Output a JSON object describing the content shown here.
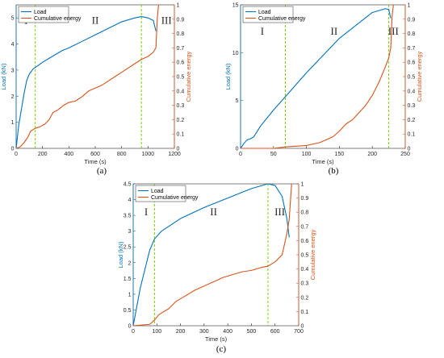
{
  "colors": {
    "load": "#0072BD",
    "energy": "#D95319",
    "divider": "#77D000",
    "axis": "#262626"
  },
  "chart_data": [
    {
      "type": "line",
      "panel_label": "(a)",
      "xlabel": "Time (s)",
      "ylabel_left": "Load (kN)",
      "ylabel_right": "Cumulative energy",
      "xlim": [
        0,
        1200
      ],
      "ylim_left": [
        0,
        5.5
      ],
      "ylim_right": [
        0,
        1
      ],
      "xticks": [
        "0",
        "200",
        "400",
        "600",
        "800",
        "1000",
        "1200"
      ],
      "yticks_left": [
        "0",
        "1",
        "2",
        "3",
        "4",
        "5"
      ],
      "yticks_right": [
        "0",
        "0.1",
        "0.2",
        "0.3",
        "0.4",
        "0.5",
        "0.6",
        "0.7",
        "0.8",
        "0.9",
        "1"
      ],
      "legend": [
        "Load",
        "Cumulative energy"
      ],
      "legend_position": "top-left",
      "region_labels": [
        "I",
        "II",
        "III"
      ],
      "region_label_x": [
        75,
        600,
        1140
      ],
      "region_label_y": 4.9,
      "dividers_x": [
        145,
        950
      ],
      "series": [
        {
          "name": "Load",
          "axis": "left",
          "x": [
            0,
            20,
            40,
            60,
            80,
            100,
            130,
            160,
            200,
            250,
            300,
            350,
            400,
            500,
            600,
            700,
            800,
            900,
            950,
            1000,
            1040,
            1060
          ],
          "y": [
            0,
            0.9,
            1.5,
            2.1,
            2.6,
            2.85,
            3.05,
            3.15,
            3.3,
            3.45,
            3.6,
            3.75,
            3.85,
            4.1,
            4.35,
            4.6,
            4.85,
            5.0,
            5.05,
            5.0,
            4.9,
            4.5
          ]
        },
        {
          "name": "Cumulative energy",
          "axis": "right",
          "x": [
            0,
            30,
            60,
            90,
            110,
            145,
            180,
            220,
            250,
            280,
            320,
            360,
            400,
            450,
            500,
            550,
            600,
            650,
            700,
            750,
            800,
            850,
            900,
            950,
            1000,
            1040,
            1060,
            1070,
            1080
          ],
          "y": [
            0,
            0.01,
            0.04,
            0.08,
            0.12,
            0.14,
            0.15,
            0.17,
            0.2,
            0.25,
            0.27,
            0.3,
            0.32,
            0.33,
            0.36,
            0.4,
            0.42,
            0.44,
            0.47,
            0.5,
            0.53,
            0.56,
            0.59,
            0.62,
            0.64,
            0.67,
            0.7,
            0.9,
            1.0
          ]
        }
      ]
    },
    {
      "type": "line",
      "panel_label": "(b)",
      "xlabel": "Time (s)",
      "ylabel_left": "Load (kN)",
      "ylabel_right": "Cumulative energy",
      "xlim": [
        0,
        250
      ],
      "ylim_left": [
        0,
        15
      ],
      "ylim_right": [
        0,
        1
      ],
      "xticks": [
        "0",
        "50",
        "100",
        "150",
        "200",
        "250"
      ],
      "yticks_left": [
        "0",
        "5",
        "10",
        "15"
      ],
      "yticks_right": [
        "0",
        "0.1",
        "0.2",
        "0.3",
        "0.4",
        "0.5",
        "0.6",
        "0.7",
        "0.8",
        "0.9",
        "1"
      ],
      "legend": [
        "Load",
        "Cumulative energy"
      ],
      "legend_position": "top-left",
      "region_labels": [
        "I",
        "II",
        "III"
      ],
      "region_label_x": [
        33,
        142,
        232
      ],
      "region_label_y": 12.2,
      "dividers_x": [
        68,
        225
      ],
      "series": [
        {
          "name": "Load",
          "axis": "left",
          "x": [
            0,
            5,
            10,
            15,
            20,
            30,
            50,
            68,
            100,
            150,
            200,
            220,
            225,
            228
          ],
          "y": [
            0,
            0.5,
            0.9,
            1.0,
            1.2,
            2.3,
            4.0,
            5.4,
            7.9,
            11.5,
            14.2,
            14.6,
            14.5,
            13.6
          ]
        },
        {
          "name": "Cumulative energy",
          "axis": "right",
          "x": [
            0,
            50,
            68,
            100,
            120,
            140,
            150,
            160,
            170,
            180,
            190,
            200,
            210,
            220,
            225,
            228,
            230,
            232
          ],
          "y": [
            0,
            0.0,
            0.01,
            0.02,
            0.04,
            0.08,
            0.12,
            0.17,
            0.2,
            0.25,
            0.3,
            0.37,
            0.46,
            0.57,
            0.63,
            0.7,
            0.92,
            1.0
          ]
        }
      ]
    },
    {
      "type": "line",
      "panel_label": "(c)",
      "xlabel": "Time (s)",
      "ylabel_left": "Load (kN)",
      "ylabel_right": "Cumulative energy",
      "xlim": [
        0,
        700
      ],
      "ylim_left": [
        0,
        4.5
      ],
      "ylim_right": [
        0,
        1
      ],
      "xticks": [
        "0",
        "100",
        "200",
        "300",
        "400",
        "500",
        "600",
        "700"
      ],
      "yticks_left": [
        "0",
        "0.5",
        "1",
        "1.5",
        "2",
        "2.5",
        "3",
        "3.5",
        "4",
        "4.5"
      ],
      "yticks_right": [
        "0",
        "0.1",
        "0.2",
        "0.3",
        "0.4",
        "0.5",
        "0.6",
        "0.7",
        "0.8",
        "0.9",
        "1"
      ],
      "legend": [
        "Load",
        "Cumulative energy"
      ],
      "legend_position": "top-left",
      "region_labels": [
        "I",
        "II",
        "III"
      ],
      "region_label_x": [
        55,
        340,
        620
      ],
      "region_label_y": 3.6,
      "dividers_x": [
        90,
        570
      ],
      "series": [
        {
          "name": "Load",
          "axis": "left",
          "x": [
            0,
            15,
            30,
            50,
            70,
            90,
            120,
            150,
            200,
            300,
            400,
            500,
            570,
            600,
            630,
            650,
            660
          ],
          "y": [
            0,
            0.6,
            1.2,
            1.8,
            2.4,
            2.75,
            3.0,
            3.15,
            3.4,
            3.75,
            4.05,
            4.35,
            4.5,
            4.45,
            4.1,
            3.4,
            2.8
          ]
        },
        {
          "name": "Cumulative energy",
          "axis": "right",
          "x": [
            0,
            70,
            90,
            110,
            150,
            180,
            220,
            260,
            300,
            340,
            380,
            420,
            460,
            500,
            540,
            570,
            600,
            630,
            650,
            660,
            670
          ],
          "y": [
            0,
            0.01,
            0.04,
            0.08,
            0.12,
            0.17,
            0.21,
            0.25,
            0.28,
            0.31,
            0.34,
            0.36,
            0.38,
            0.39,
            0.41,
            0.42,
            0.45,
            0.5,
            0.65,
            0.75,
            1.0
          ]
        }
      ]
    }
  ]
}
